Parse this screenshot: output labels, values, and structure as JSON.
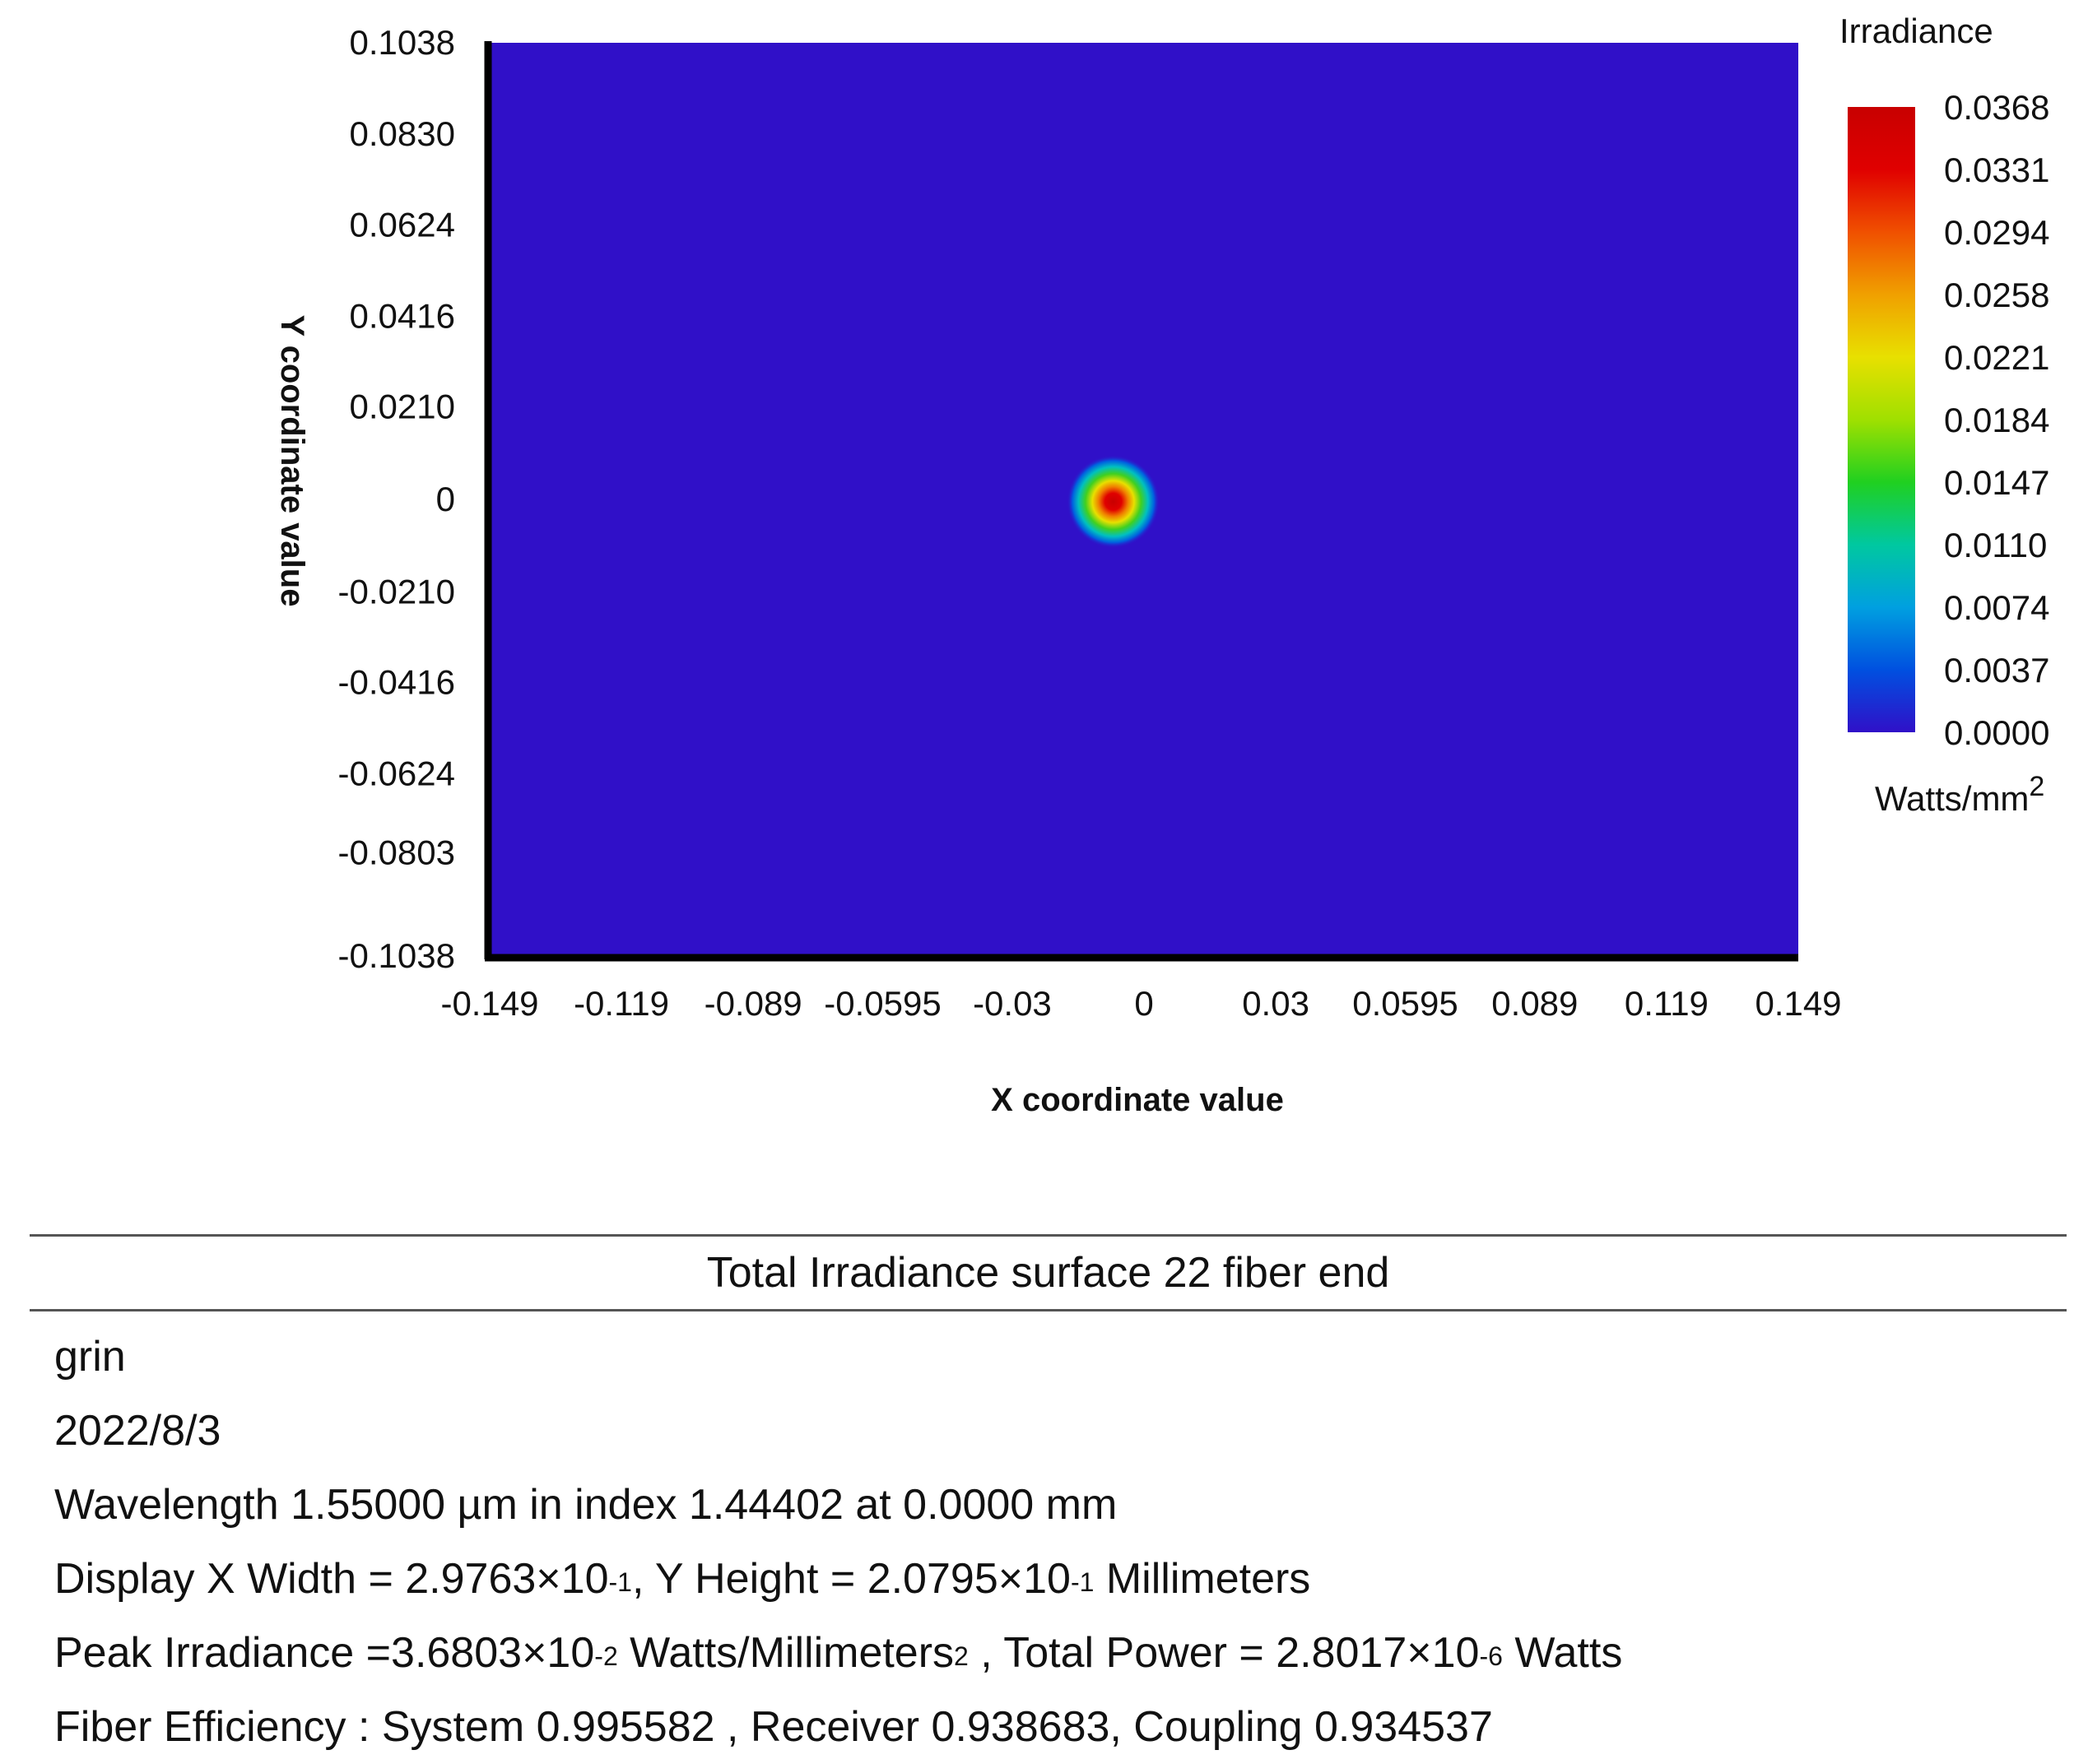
{
  "chart_data": {
    "type": "heatmap",
    "xlabel": "X coordinate value",
    "ylabel": "Y coordinate value",
    "x_ticks": [
      "-0.149",
      "-0.119",
      "-0.089",
      "-0.0595",
      "-0.03",
      "0",
      "0.03",
      "0.0595",
      "0.089",
      "0.119",
      "0.149"
    ],
    "x_tick_values": [
      -0.149,
      -0.119,
      -0.089,
      -0.0595,
      -0.03,
      0,
      0.03,
      0.0595,
      0.089,
      0.119,
      0.149
    ],
    "y_ticks": [
      "0.1038",
      "0.0830",
      "0.0624",
      "0.0416",
      "0.0210",
      "0",
      "-0.0210",
      "-0.0416",
      "-0.0624",
      "-0.0803",
      "-0.1038"
    ],
    "y_tick_values": [
      0.1038,
      0.083,
      0.0624,
      0.0416,
      0.021,
      0,
      -0.021,
      -0.0416,
      -0.0624,
      -0.0803,
      -0.1038
    ],
    "xlim": [
      -0.149,
      0.149
    ],
    "ylim": [
      -0.1038,
      0.1038
    ],
    "spot": {
      "x_center": -0.007,
      "y_center": -0.0005,
      "peak": 0.0368,
      "sigma": 0.0048
    },
    "colorbar": {
      "title": "Irradiance",
      "unit": "Watts/mm",
      "unit_sup": "2",
      "ticks": [
        "0.0368",
        "0.0331",
        "0.0294",
        "0.0258",
        "0.0221",
        "0.0184",
        "0.0147",
        "0.0110",
        "0.0074",
        "0.0037",
        "0.0000"
      ],
      "range": [
        0.0,
        0.0368
      ],
      "colors": [
        "#3010c8",
        "#0050e0",
        "#00a0e0",
        "#00c8a0",
        "#20d020",
        "#a0e000",
        "#e8e000",
        "#f0a000",
        "#f05000",
        "#e00000",
        "#c80000"
      ]
    },
    "background_color": "#3010c8"
  },
  "info": {
    "title": "Total Irradiance surface 22 fiber end",
    "line1": "grin",
    "line2": "2022/8/3",
    "line3": "Wavelength 1.55000 µm in index 1.44402 at 0.0000 mm",
    "line4_a": "Display X Width = 2.9763×10",
    "line4_a_sup": "-1",
    "line4_b": ", Y Height = 2.0795×10",
    "line4_b_sup": "-1",
    "line4_c": " Millimeters",
    "line5_a": "Peak Irradiance =3.6803×10",
    "line5_a_sup": "-2",
    "line5_b": " Watts/Millimeters",
    "line5_b_sup": "2",
    "line5_c": "   , Total Power = 2.8017×10",
    "line5_c_sup": "-6",
    "line5_d": " Watts",
    "line6": "Fiber Efficiency : System 0.995582 , Receiver 0.938683, Coupling 0.934537"
  }
}
